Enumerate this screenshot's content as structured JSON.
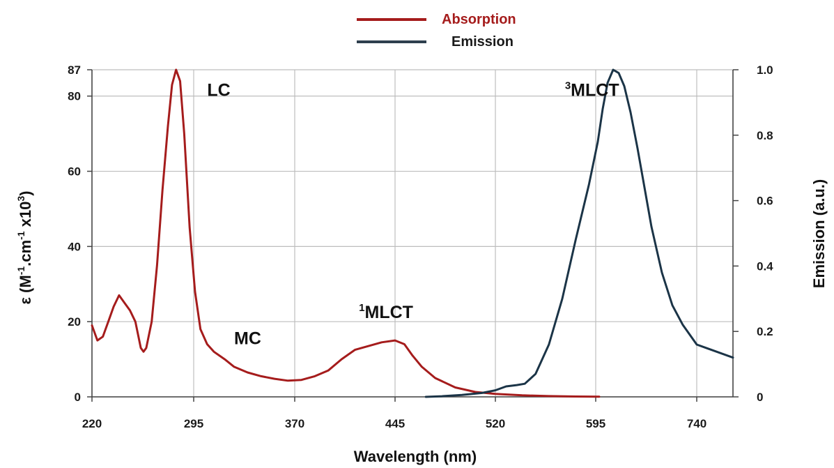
{
  "chart_data": {
    "type": "line",
    "title": "",
    "xlabel": "Wavelength (nm)",
    "ylabel": {
      "prefix": "ε (M",
      "sup1": "-1",
      "mid": ".cm",
      "sup2": "-1",
      "mid2": " x10",
      "sup3": "3",
      "suffix": ")"
    },
    "y2label": "Emission (a.u.)",
    "x_ticks": [
      "220",
      "295",
      "370",
      "445",
      "520",
      "595",
      "740"
    ],
    "y_ticks": [
      "0",
      "20",
      "40",
      "60",
      "80",
      "87"
    ],
    "y2_ticks": [
      "0",
      "0.2",
      "0.4",
      "0.6",
      "0.8",
      "1.0"
    ],
    "xlim": [
      220,
      740
    ],
    "ylim": [
      0,
      87
    ],
    "y2lim": [
      0,
      1.0
    ],
    "grid": true,
    "legend_position": "top-center",
    "annotations": [
      {
        "sup": "",
        "text": "LC",
        "x": 305,
        "y": 80
      },
      {
        "sup": "",
        "text": "MC",
        "x": 325,
        "y": 14
      },
      {
        "sup": "1",
        "text": "MLCT",
        "x": 418,
        "y": 21
      },
      {
        "sup": "3",
        "text": "MLCT",
        "x": 572,
        "y": 80
      }
    ],
    "series": [
      {
        "name": "Absorption",
        "axis": "left",
        "color": "#a51c1c",
        "x": [
          220,
          224,
          228,
          232,
          236,
          240,
          244,
          248,
          252,
          256,
          258,
          260,
          264,
          268,
          272,
          276,
          279,
          282,
          285,
          288,
          292,
          296,
          300,
          305,
          310,
          318,
          325,
          335,
          345,
          355,
          365,
          375,
          385,
          395,
          405,
          415,
          425,
          435,
          445,
          452,
          458,
          465,
          475,
          490,
          505,
          520,
          540,
          560,
          580,
          600
        ],
        "y": [
          19,
          15,
          16,
          20,
          24,
          27,
          25,
          23,
          20,
          13,
          12,
          13,
          20,
          35,
          55,
          72,
          83,
          87,
          84,
          70,
          45,
          28,
          18,
          14,
          12,
          10,
          8,
          6.5,
          5.5,
          4.8,
          4.3,
          4.5,
          5.5,
          7,
          10,
          12.5,
          13.5,
          14.5,
          15,
          14,
          11,
          8,
          5,
          2.5,
          1.3,
          0.8,
          0.4,
          0.2,
          0.1,
          0.05
        ]
      },
      {
        "name": "Emission",
        "axis": "right",
        "color": "#1b3447",
        "x": [
          468,
          480,
          495,
          510,
          520,
          528,
          536,
          542,
          550,
          560,
          570,
          580,
          590,
          598,
          605,
          612,
          620,
          628,
          636,
          645,
          655,
          665,
          675,
          690,
          705,
          720,
          740,
          760
        ],
        "y": [
          0.0,
          0.002,
          0.006,
          0.012,
          0.02,
          0.032,
          0.036,
          0.04,
          0.07,
          0.16,
          0.3,
          0.48,
          0.65,
          0.78,
          0.88,
          0.96,
          1.0,
          0.99,
          0.95,
          0.87,
          0.76,
          0.64,
          0.52,
          0.38,
          0.28,
          0.22,
          0.16,
          0.12
        ]
      }
    ]
  }
}
